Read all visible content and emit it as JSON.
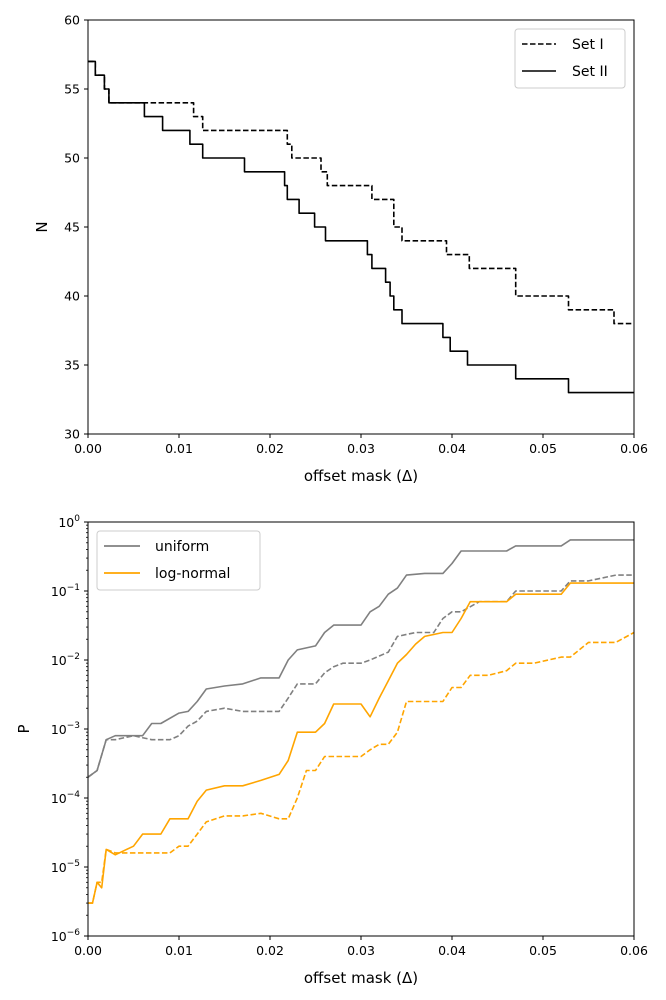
{
  "chart_data": [
    {
      "type": "line",
      "xlabel": "offset mask  (Δ)",
      "ylabel": "N",
      "xlim": [
        0,
        0.06
      ],
      "ylim": [
        30,
        60
      ],
      "xticks": [
        "0.00",
        "0.01",
        "0.02",
        "0.03",
        "0.04",
        "0.05",
        "0.06"
      ],
      "yticks": [
        "30",
        "35",
        "40",
        "45",
        "50",
        "55",
        "60"
      ],
      "legend_position": "top-right",
      "grid": false,
      "series": [
        {
          "name": "Set I",
          "color": "#000000",
          "style": "dashed",
          "x": [
            0,
            0.0008,
            0.0018,
            0.0023,
            0.011,
            0.0116,
            0.0126,
            0.0216,
            0.0219,
            0.0224,
            0.0249,
            0.0256,
            0.0263,
            0.0307,
            0.0312,
            0.0332,
            0.0336,
            0.0345,
            0.039,
            0.0394,
            0.0415,
            0.0419,
            0.0465,
            0.047,
            0.0525,
            0.0528,
            0.0575,
            0.0578,
            0.06
          ],
          "y": [
            57,
            56,
            55,
            54,
            54,
            53,
            52,
            52,
            51,
            50,
            50,
            49,
            48,
            48,
            47,
            47,
            45,
            44,
            44,
            43,
            43,
            42,
            42,
            40,
            40,
            39,
            39,
            38,
            38
          ]
        },
        {
          "name": "Set II",
          "color": "#000000",
          "style": "solid",
          "x": [
            0,
            0.0008,
            0.0018,
            0.0023,
            0.0062,
            0.0082,
            0.0112,
            0.0126,
            0.0172,
            0.0216,
            0.0219,
            0.0224,
            0.0232,
            0.0249,
            0.0261,
            0.0307,
            0.0312,
            0.0327,
            0.0332,
            0.0336,
            0.0345,
            0.039,
            0.0398,
            0.0403,
            0.0417,
            0.0465,
            0.047,
            0.0525,
            0.0528,
            0.06
          ],
          "y": [
            57,
            56,
            55,
            54,
            53,
            52,
            51,
            50,
            49,
            48,
            47,
            47,
            46,
            45,
            44,
            43,
            42,
            41,
            40,
            39,
            38,
            37,
            36,
            36,
            35,
            35,
            34,
            34,
            33,
            33
          ]
        }
      ]
    },
    {
      "type": "line",
      "xlabel": "offset mask  (Δ)",
      "ylabel": "P",
      "yscale": "log",
      "xlim": [
        0,
        0.06
      ],
      "ylim": [
        1e-06,
        1
      ],
      "xticks": [
        "0.00",
        "0.01",
        "0.02",
        "0.03",
        "0.04",
        "0.05",
        "0.06"
      ],
      "yticks": [
        {
          "base": "10",
          "exp": "−6",
          "value": 1e-06
        },
        {
          "base": "10",
          "exp": "−5",
          "value": 1e-05
        },
        {
          "base": "10",
          "exp": "−4",
          "value": 0.0001
        },
        {
          "base": "10",
          "exp": "−3",
          "value": 0.001
        },
        {
          "base": "10",
          "exp": "−2",
          "value": 0.01
        },
        {
          "base": "10",
          "exp": "−1",
          "value": 0.1
        },
        {
          "base": "10",
          "exp": "0",
          "value": 1
        }
      ],
      "legend_position": "top-left",
      "grid": false,
      "series": [
        {
          "name": "uniform",
          "color": "#808080",
          "style": "solid",
          "x": [
            0,
            0.001,
            0.002,
            0.003,
            0.005,
            0.006,
            0.007,
            0.008,
            0.01,
            0.011,
            0.012,
            0.013,
            0.015,
            0.017,
            0.019,
            0.021,
            0.022,
            0.023,
            0.025,
            0.026,
            0.027,
            0.028,
            0.03,
            0.031,
            0.032,
            0.033,
            0.034,
            0.035,
            0.037,
            0.039,
            0.04,
            0.041,
            0.043,
            0.045,
            0.046,
            0.047,
            0.05,
            0.052,
            0.053,
            0.055,
            0.058,
            0.06
          ],
          "y": [
            0.0002,
            0.00025,
            0.0007,
            0.0008,
            0.0008,
            0.0008,
            0.0012,
            0.0012,
            0.0017,
            0.0018,
            0.0025,
            0.0038,
            0.0042,
            0.0045,
            0.0055,
            0.0055,
            0.01,
            0.014,
            0.016,
            0.025,
            0.032,
            0.032,
            0.032,
            0.05,
            0.06,
            0.09,
            0.11,
            0.17,
            0.18,
            0.18,
            0.25,
            0.38,
            0.38,
            0.38,
            0.38,
            0.45,
            0.45,
            0.45,
            0.55,
            0.55,
            0.55,
            0.55
          ]
        },
        {
          "name": "",
          "color": "#808080",
          "style": "dashed",
          "x": [
            0,
            0.001,
            0.002,
            0.003,
            0.005,
            0.007,
            0.009,
            0.01,
            0.011,
            0.012,
            0.013,
            0.015,
            0.017,
            0.019,
            0.021,
            0.022,
            0.023,
            0.025,
            0.026,
            0.027,
            0.028,
            0.03,
            0.031,
            0.033,
            0.034,
            0.036,
            0.038,
            0.039,
            0.04,
            0.041,
            0.043,
            0.046,
            0.047,
            0.05,
            0.052,
            0.053,
            0.055,
            0.058,
            0.06
          ],
          "y": [
            0.0002,
            0.00025,
            0.0007,
            0.0007,
            0.0008,
            0.0007,
            0.0007,
            0.0008,
            0.0011,
            0.0013,
            0.0018,
            0.002,
            0.0018,
            0.0018,
            0.0018,
            0.0028,
            0.0045,
            0.0045,
            0.0065,
            0.008,
            0.009,
            0.009,
            0.01,
            0.013,
            0.022,
            0.025,
            0.025,
            0.04,
            0.05,
            0.05,
            0.07,
            0.07,
            0.1,
            0.1,
            0.1,
            0.14,
            0.14,
            0.17,
            0.17
          ]
        },
        {
          "name": "log-normal",
          "color": "#ffa500",
          "style": "solid",
          "x": [
            0,
            0.0005,
            0.001,
            0.0015,
            0.002,
            0.003,
            0.005,
            0.006,
            0.008,
            0.009,
            0.01,
            0.011,
            0.012,
            0.013,
            0.015,
            0.017,
            0.019,
            0.021,
            0.022,
            0.023,
            0.025,
            0.026,
            0.027,
            0.028,
            0.03,
            0.031,
            0.032,
            0.033,
            0.034,
            0.035,
            0.036,
            0.037,
            0.039,
            0.04,
            0.041,
            0.042,
            0.044,
            0.046,
            0.047,
            0.049,
            0.052,
            0.053,
            0.055,
            0.058,
            0.06
          ],
          "y": [
            3e-06,
            3e-06,
            6e-06,
            5e-06,
            1.8e-05,
            1.5e-05,
            2e-05,
            3e-05,
            3e-05,
            5e-05,
            5e-05,
            5e-05,
            9e-05,
            0.00013,
            0.00015,
            0.00015,
            0.00018,
            0.00022,
            0.00035,
            0.0009,
            0.0009,
            0.0012,
            0.0023,
            0.0023,
            0.0023,
            0.0015,
            0.0028,
            0.005,
            0.009,
            0.012,
            0.017,
            0.022,
            0.025,
            0.025,
            0.04,
            0.07,
            0.07,
            0.07,
            0.09,
            0.09,
            0.09,
            0.13,
            0.13,
            0.13,
            0.13
          ]
        },
        {
          "name": "",
          "color": "#ffa500",
          "style": "dashed",
          "x": [
            0,
            0.0005,
            0.001,
            0.0015,
            0.002,
            0.003,
            0.005,
            0.007,
            0.009,
            0.01,
            0.011,
            0.012,
            0.013,
            0.015,
            0.017,
            0.019,
            0.021,
            0.022,
            0.023,
            0.024,
            0.025,
            0.026,
            0.027,
            0.029,
            0.03,
            0.031,
            0.032,
            0.033,
            0.034,
            0.035,
            0.037,
            0.039,
            0.04,
            0.041,
            0.042,
            0.044,
            0.046,
            0.047,
            0.049,
            0.052,
            0.053,
            0.055,
            0.058,
            0.06
          ],
          "y": [
            3e-06,
            3e-06,
            6e-06,
            6e-06,
            1.8e-05,
            1.6e-05,
            1.6e-05,
            1.6e-05,
            1.6e-05,
            2e-05,
            2e-05,
            3e-05,
            4.5e-05,
            5.5e-05,
            5.5e-05,
            6e-05,
            5e-05,
            5e-05,
            0.0001,
            0.00025,
            0.00025,
            0.0004,
            0.0004,
            0.0004,
            0.0004,
            0.0005,
            0.0006,
            0.0006,
            0.0009,
            0.0025,
            0.0025,
            0.0025,
            0.004,
            0.004,
            0.006,
            0.006,
            0.007,
            0.009,
            0.009,
            0.011,
            0.011,
            0.018,
            0.018,
            0.025
          ]
        }
      ]
    }
  ]
}
